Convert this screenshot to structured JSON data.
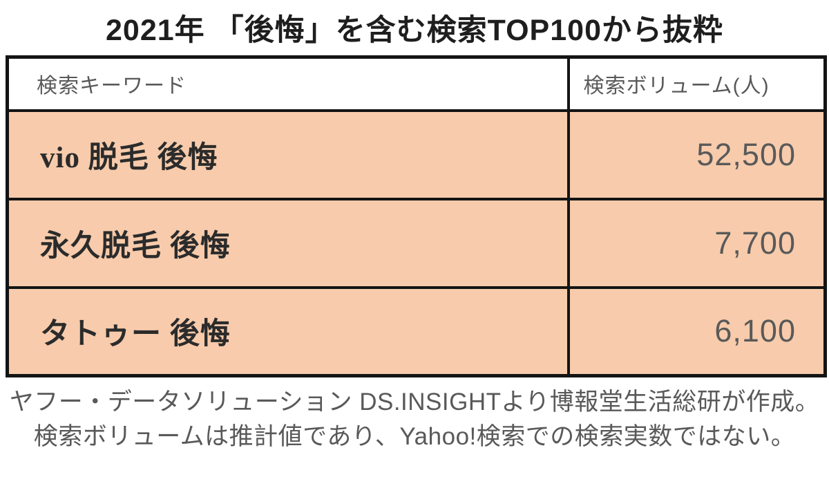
{
  "title": "2021年 「後悔」を含む検索TOP100から抜粋",
  "table": {
    "headers": [
      "検索キーワード",
      "検索ボリューム(人)"
    ],
    "rows": [
      {
        "keyword": "vio 脱毛 後悔",
        "volume": "52,500"
      },
      {
        "keyword": "永久脱毛 後悔",
        "volume": "7,700"
      },
      {
        "keyword": "タトゥー 後悔",
        "volume": "6,100"
      }
    ]
  },
  "footer": {
    "line1": "ヤフー・データソリューション DS.INSIGHTより博報堂生活総研が作成。",
    "line2": "検索ボリュームは推計値であり、Yahoo!検索での検索実数ではない。"
  },
  "colors": {
    "row_bg": "#F7CBAB",
    "border": "#141414",
    "muted_text": "#595959",
    "keyword_text": "#2b2b2b",
    "title_text": "#1e1e1e"
  },
  "chart_data": {
    "type": "table",
    "title": "2021年 「後悔」を含む検索TOP100から抜粋",
    "columns": [
      "検索キーワード",
      "検索ボリューム(人)"
    ],
    "rows": [
      [
        "vio 脱毛 後悔",
        52500
      ],
      [
        "永久脱毛 後悔",
        7700
      ],
      [
        "タトゥー 後悔",
        6100
      ]
    ],
    "notes": [
      "ヤフー・データソリューション DS.INSIGHTより博報堂生活総研が作成。",
      "検索ボリュームは推計値であり、Yahoo!検索での検索実数ではない。"
    ]
  }
}
